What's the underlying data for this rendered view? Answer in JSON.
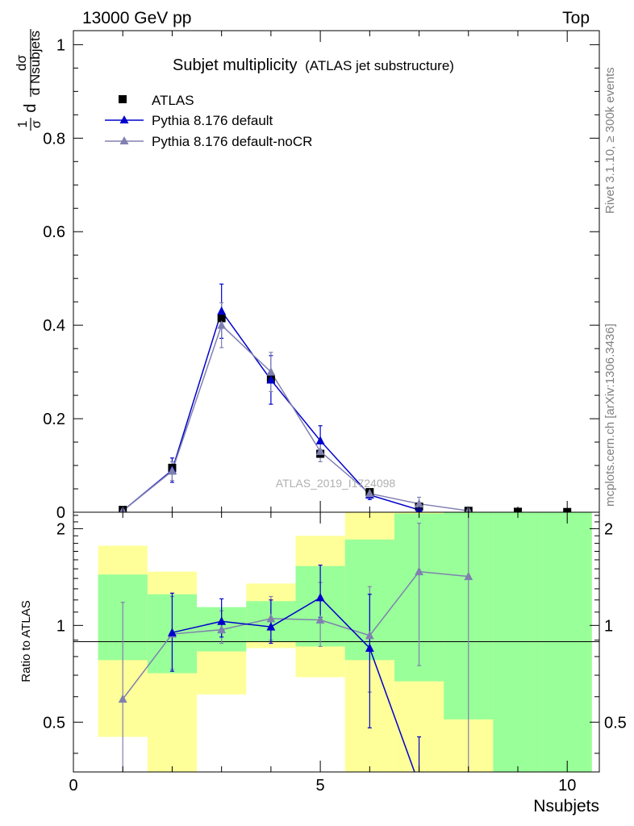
{
  "header": {
    "energy": "13000 GeV pp",
    "process": "Top"
  },
  "side_labels": {
    "rivet": "Rivet 3.1.10, ≥ 300k events",
    "mcplots": "mcplots.cern.ch [arXiv:1306.3436]"
  },
  "watermark": "ATLAS_2019_I1724098",
  "colors": {
    "data": "#000000",
    "default": "#0000cc",
    "nocr": "#8080b0",
    "band_inner": "#99ff99",
    "band_outer": "#ffff99"
  },
  "chart_data": [
    {
      "type": "line",
      "title": "Subjet multiplicity",
      "subtitle": "(ATLAS jet substructure)",
      "ylabel_parts": {
        "num1": "1",
        "den1": "σ",
        "d": "d",
        "num2": "dσ",
        "den2": "d Nsubjets"
      },
      "xlim": [
        0,
        10.65
      ],
      "ylim": [
        0,
        1.03
      ],
      "yticks": [
        0,
        0.2,
        0.4,
        0.6,
        0.8,
        1
      ],
      "ytick_labels": [
        "0",
        "0.2",
        "0.4",
        "0.6",
        "0.8",
        "1"
      ],
      "legend": [
        "ATLAS",
        "Pythia 8.176 default",
        "Pythia 8.176 default-noCR"
      ],
      "legend_position": "top-left",
      "x": [
        1,
        2,
        3,
        4,
        5,
        6,
        7,
        8,
        9,
        10
      ],
      "series": [
        {
          "name": "ATLAS",
          "marker": "square",
          "values": [
            0.005,
            0.095,
            0.415,
            0.285,
            0.125,
            0.043,
            0.012,
            0.003,
            0.001,
            0.0005
          ]
        },
        {
          "name": "Pythia 8.176 default",
          "marker": "triangle",
          "x": [
            1,
            2,
            3,
            4,
            5,
            6,
            7
          ],
          "values": [
            0.003,
            0.09,
            0.43,
            0.283,
            0.153,
            0.037,
            0.005
          ],
          "errors": [
            0.001,
            0.026,
            0.058,
            0.052,
            0.032,
            0.01,
            0.004
          ]
        },
        {
          "name": "Pythia 8.176 default-noCR",
          "marker": "triangle",
          "x": [
            1,
            2,
            3,
            4,
            5,
            6,
            7,
            8
          ],
          "values": [
            0.003,
            0.088,
            0.4,
            0.3,
            0.13,
            0.04,
            0.018,
            0.003
          ],
          "errors": [
            0.001,
            0.02,
            0.048,
            0.042,
            0.022,
            0.01,
            0.014,
            0.003
          ]
        }
      ]
    },
    {
      "type": "line",
      "ylabel": "Ratio to ATLAS",
      "xlabel": "Nsubjets",
      "xlim": [
        0,
        10.65
      ],
      "ylim": [
        0.35,
        2.25
      ],
      "xticks": [
        0,
        5,
        10
      ],
      "xtick_labels": [
        "0",
        "5",
        "10"
      ],
      "yticks": [
        0.5,
        1,
        2
      ],
      "ytick_labels": [
        "0.5",
        "1",
        "2"
      ],
      "bands": {
        "bins": [
          [
            0.5,
            1.5
          ],
          [
            1.5,
            2.5
          ],
          [
            2.5,
            3.5
          ],
          [
            3.5,
            4.5
          ],
          [
            4.5,
            5.5
          ],
          [
            5.5,
            6.5
          ],
          [
            6.5,
            7.5
          ],
          [
            7.5,
            8.5
          ],
          [
            8.5,
            9.5
          ],
          [
            9.5,
            10.5
          ]
        ],
        "inner_low": [
          0.78,
          0.71,
          0.83,
          0.89,
          0.86,
          0.78,
          0.67,
          0.51,
          0.25,
          0.25
        ],
        "inner_high": [
          1.44,
          1.25,
          1.14,
          1.19,
          1.53,
          1.85,
          2.23,
          2.27,
          2.27,
          2.27
        ],
        "outer_low": [
          0.45,
          0.32,
          0.61,
          0.85,
          0.69,
          0.3,
          0.3,
          0.3,
          0.3,
          0.3
        ],
        "outer_high": [
          1.77,
          1.47,
          1.08,
          1.35,
          1.9,
          2.27,
          2.27,
          2.27,
          2.27,
          2.27
        ]
      },
      "series": [
        {
          "name": "Pythia 8.176 default",
          "x": [
            2,
            3,
            4,
            5,
            6,
            7
          ],
          "values": [
            0.95,
            1.03,
            0.99,
            1.22,
            0.85,
            0.32
          ],
          "err_low": [
            0.72,
            0.92,
            0.88,
            1.06,
            0.48,
            0.3
          ],
          "err_high": [
            1.26,
            1.21,
            1.2,
            1.54,
            1.25,
            0.45
          ]
        },
        {
          "name": "Pythia 8.176 default-noCR",
          "x": [
            1,
            2,
            3,
            4,
            5,
            6,
            7,
            8
          ],
          "values": [
            0.59,
            0.94,
            0.97,
            1.05,
            1.04,
            0.93,
            1.47,
            1.42
          ],
          "err_low": [
            0.27,
            0.73,
            0.88,
            0.9,
            0.86,
            0.62,
            0.75,
            0.3
          ],
          "err_high": [
            1.18,
            1.23,
            1.11,
            1.23,
            1.36,
            1.32,
            2.08,
            2.3
          ]
        }
      ]
    }
  ]
}
